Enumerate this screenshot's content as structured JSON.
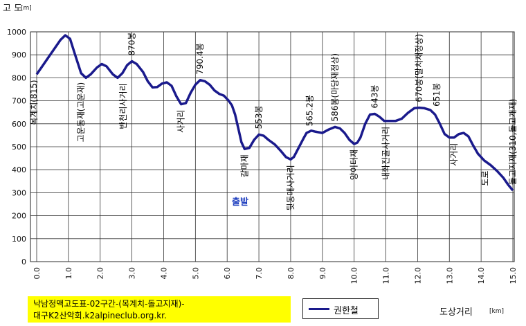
{
  "chart_data": {
    "type": "line",
    "ylabel": "고 도",
    "ylabel_unit": "[m]",
    "xlabel": "도상거리",
    "xlabel_unit": "[km]",
    "xlim": [
      0,
      15
    ],
    "ylim": [
      0,
      1000
    ],
    "x_ticks": [
      "0.0",
      "1.0",
      "2.0",
      "3.0",
      "4.0",
      "5.0",
      "6.0",
      "7.0",
      "8.0",
      "9.0",
      "10.0",
      "11.0",
      "12.0",
      "13.0",
      "14.0",
      "15.0"
    ],
    "y_ticks": [
      "0",
      "100",
      "200",
      "300",
      "400",
      "500",
      "600",
      "700",
      "800",
      "900",
      "1000"
    ],
    "grid": true,
    "series": [
      {
        "name": "권한철",
        "color": "#1a1a8c",
        "points": [
          [
            0.0,
            815
          ],
          [
            0.2,
            855
          ],
          [
            0.4,
            895
          ],
          [
            0.6,
            935
          ],
          [
            0.75,
            965
          ],
          [
            0.9,
            985
          ],
          [
            1.05,
            970
          ],
          [
            1.2,
            905
          ],
          [
            1.4,
            820
          ],
          [
            1.55,
            800
          ],
          [
            1.7,
            815
          ],
          [
            1.9,
            845
          ],
          [
            2.05,
            860
          ],
          [
            2.2,
            850
          ],
          [
            2.4,
            815
          ],
          [
            2.55,
            800
          ],
          [
            2.7,
            820
          ],
          [
            2.85,
            855
          ],
          [
            3.0,
            872
          ],
          [
            3.15,
            860
          ],
          [
            3.35,
            825
          ],
          [
            3.5,
            785
          ],
          [
            3.65,
            758
          ],
          [
            3.8,
            760
          ],
          [
            3.95,
            775
          ],
          [
            4.1,
            780
          ],
          [
            4.25,
            765
          ],
          [
            4.4,
            720
          ],
          [
            4.55,
            685
          ],
          [
            4.7,
            690
          ],
          [
            4.85,
            735
          ],
          [
            5.0,
            770
          ],
          [
            5.15,
            790
          ],
          [
            5.3,
            785
          ],
          [
            5.45,
            770
          ],
          [
            5.6,
            745
          ],
          [
            5.75,
            730
          ],
          [
            5.9,
            722
          ],
          [
            6.05,
            700
          ],
          [
            6.15,
            680
          ],
          [
            6.25,
            640
          ],
          [
            6.35,
            580
          ],
          [
            6.45,
            520
          ],
          [
            6.55,
            490
          ],
          [
            6.7,
            495
          ],
          [
            6.85,
            530
          ],
          [
            7.0,
            553
          ],
          [
            7.15,
            548
          ],
          [
            7.3,
            530
          ],
          [
            7.5,
            510
          ],
          [
            7.7,
            480
          ],
          [
            7.85,
            455
          ],
          [
            8.0,
            445
          ],
          [
            8.1,
            455
          ],
          [
            8.25,
            495
          ],
          [
            8.4,
            535
          ],
          [
            8.5,
            560
          ],
          [
            8.65,
            570
          ],
          [
            8.8,
            565
          ],
          [
            9.0,
            560
          ],
          [
            9.2,
            575
          ],
          [
            9.4,
            586
          ],
          [
            9.55,
            580
          ],
          [
            9.7,
            560
          ],
          [
            9.85,
            530
          ],
          [
            10.0,
            512
          ],
          [
            10.1,
            518
          ],
          [
            10.2,
            540
          ],
          [
            10.35,
            600
          ],
          [
            10.5,
            640
          ],
          [
            10.65,
            643
          ],
          [
            10.8,
            630
          ],
          [
            10.95,
            612
          ],
          [
            11.1,
            612
          ],
          [
            11.3,
            612
          ],
          [
            11.5,
            622
          ],
          [
            11.7,
            648
          ],
          [
            11.9,
            668
          ],
          [
            12.05,
            670
          ],
          [
            12.2,
            668
          ],
          [
            12.4,
            660
          ],
          [
            12.55,
            640
          ],
          [
            12.7,
            600
          ],
          [
            12.85,
            555
          ],
          [
            13.0,
            540
          ],
          [
            13.15,
            540
          ],
          [
            13.3,
            555
          ],
          [
            13.45,
            560
          ],
          [
            13.6,
            545
          ],
          [
            13.75,
            505
          ],
          [
            13.9,
            470
          ],
          [
            14.1,
            440
          ],
          [
            14.3,
            420
          ],
          [
            14.5,
            395
          ],
          [
            14.7,
            365
          ],
          [
            14.85,
            335
          ],
          [
            15.0,
            310
          ]
        ]
      }
    ],
    "annotations": [
      {
        "text": "목계치(815)",
        "x": 0.0,
        "y": 815
      },
      {
        "text": "고운동재(고운재)",
        "x": 1.4,
        "y": 805
      },
      {
        "text": "870봉",
        "x": 3.0,
        "y": 872
      },
      {
        "text": "반천리사거리",
        "x": 2.55,
        "y": 800
      },
      {
        "text": "790.4봉",
        "x": 5.15,
        "y": 790
      },
      {
        "text": "사거리",
        "x": 4.55,
        "y": 685
      },
      {
        "text": "553봉",
        "x": 7.0,
        "y": 553
      },
      {
        "text": "갈마재",
        "x": 6.55,
        "y": 490
      },
      {
        "text": "565.2봉",
        "x": 8.6,
        "y": 565
      },
      {
        "text": "뒷동매사거리",
        "x": 8.0,
        "y": 445
      },
      {
        "text": "586봉(마당재정상)",
        "x": 9.4,
        "y": 586
      },
      {
        "text": "양이터재",
        "x": 10.0,
        "y": 512
      },
      {
        "text": "643봉",
        "x": 10.65,
        "y": 643
      },
      {
        "text": "내화진골사거리",
        "x": 11.0,
        "y": 612
      },
      {
        "text": "670봉(말치재정상)",
        "x": 12.05,
        "y": 670
      },
      {
        "text": "651봉",
        "x": 12.6,
        "y": 651
      },
      {
        "text": "사거리",
        "x": 13.15,
        "y": 540
      },
      {
        "text": "돌고지재(310,돌고개재)",
        "x": 15.0,
        "y": 310
      },
      {
        "text": "도로",
        "x": 14.3,
        "y": 420
      }
    ],
    "start_marker": "출발",
    "title_lines": [
      "낙남정맥고도표-02구간-(목계치-돌고지재)-",
      "대구K2산악회.k2alpineclub.org.kr."
    ]
  }
}
